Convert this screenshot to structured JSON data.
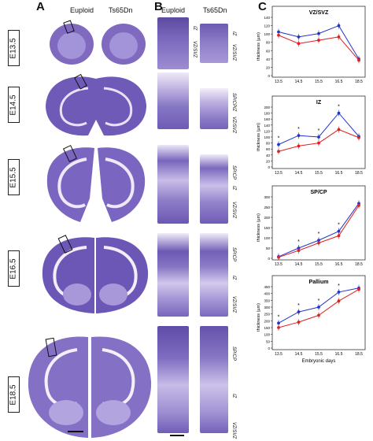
{
  "panels": {
    "a": "A",
    "b": "B",
    "c": "C"
  },
  "headers": {
    "euploid": "Euploid",
    "ts65dn": "Ts65Dn"
  },
  "stages": [
    "E13.5",
    "E14.5",
    "E15.5",
    "E16.5",
    "E18.5"
  ],
  "zone_labels": {
    "iz": "IZ",
    "vz_svz": "VZ/SVZ",
    "sp_cp": "SP/CP"
  },
  "colors": {
    "euploid": "#2233cc",
    "ts65dn": "#dd2222",
    "stain_dark": "#4b3a8f",
    "stain_light": "#b7a6dd"
  },
  "chart_data": [
    {
      "type": "line",
      "title": "VZ/SVZ",
      "xlabel": "",
      "ylabel": "thickness (µm)",
      "x": [
        "13.5",
        "14.5",
        "15.5",
        "16.5",
        "18.5"
      ],
      "ylim": [
        0,
        140
      ],
      "yticks": [
        "0",
        "20",
        "40",
        "60",
        "80",
        "100",
        "120",
        "140"
      ],
      "series": [
        {
          "values": [
            105,
            93,
            101,
            120,
            40
          ],
          "color": "#2233cc"
        },
        {
          "values": [
            97,
            77,
            85,
            93,
            37
          ],
          "color": "#dd2222"
        }
      ],
      "significant": []
    },
    {
      "type": "line",
      "title": "IZ",
      "xlabel": "",
      "ylabel": "thickness (µm)",
      "x": [
        "13.5",
        "14.5",
        "15.5",
        "16.5",
        "18.5"
      ],
      "ylim": [
        0,
        200
      ],
      "yticks": [
        "0",
        "20",
        "40",
        "60",
        "80",
        "100",
        "120",
        "140",
        "160",
        "180",
        "200"
      ],
      "series": [
        {
          "values": [
            75,
            105,
            100,
            180,
            102
          ],
          "color": "#2233cc"
        },
        {
          "values": [
            52,
            70,
            80,
            125,
            98
          ],
          "color": "#dd2222"
        }
      ],
      "significant": [
        "*",
        "*",
        "*",
        "*",
        ""
      ]
    },
    {
      "type": "line",
      "title": "SP/CP",
      "xlabel": "",
      "ylabel": "thickness (µm)",
      "x": [
        "13.5",
        "14.5",
        "15.5",
        "16.5",
        "18.5"
      ],
      "ylim": [
        0,
        300
      ],
      "yticks": [
        "0",
        "50",
        "100",
        "150",
        "200",
        "250",
        "300"
      ],
      "series": [
        {
          "values": [
            8,
            50,
            88,
            132,
            268
          ],
          "color": "#2233cc"
        },
        {
          "values": [
            5,
            38,
            75,
            110,
            258
          ],
          "color": "#dd2222"
        }
      ],
      "significant": [
        "",
        "*",
        "*",
        "*",
        ""
      ]
    },
    {
      "type": "line",
      "title": "Pallium",
      "xlabel": "Embryonic days",
      "ylabel": "thickness (µm)",
      "x": [
        "13.5",
        "14.5",
        "15.5",
        "16.5",
        "18.5"
      ],
      "ylim": [
        0,
        450
      ],
      "yticks": [
        "0",
        "50",
        "100",
        "150",
        "200",
        "250",
        "300",
        "350",
        "400",
        "450"
      ],
      "series": [
        {
          "values": [
            183,
            265,
            300,
            410,
            440
          ],
          "color": "#2233cc"
        },
        {
          "values": [
            150,
            190,
            240,
            345,
            430
          ],
          "color": "#dd2222"
        }
      ],
      "significant": [
        "*",
        "*",
        "*",
        "*",
        ""
      ]
    }
  ]
}
